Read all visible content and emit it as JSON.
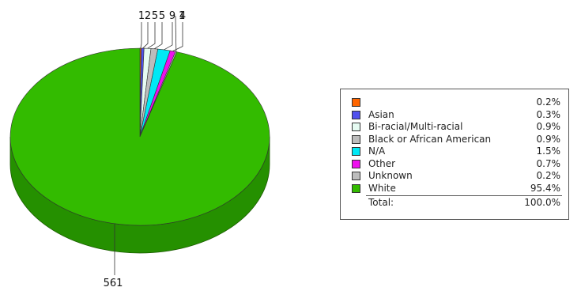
{
  "chart_data": {
    "type": "pie",
    "title": "",
    "three_d": true,
    "slices": [
      {
        "name": "",
        "label": "1",
        "value": 1,
        "percent": "0.2%",
        "color": "#ff6600",
        "side_color": "#cc5200"
      },
      {
        "name": "Asian",
        "label": "2",
        "value": 2,
        "percent": "0.3%",
        "color": "#5050ee",
        "side_color": "#3535b0"
      },
      {
        "name": "Bi-racial/Multi-racial",
        "label": "5",
        "value": 5,
        "percent": "0.9%",
        "color": "#e6fbf2",
        "side_color": "#b8c9c2"
      },
      {
        "name": "Black or African American",
        "label": "5",
        "value": 5,
        "percent": "0.9%",
        "color": "#bcbcbc",
        "side_color": "#909090"
      },
      {
        "name": "N/A",
        "label": "9",
        "value": 9,
        "percent": "1.5%",
        "color": "#00e8f5",
        "side_color": "#00aab4"
      },
      {
        "name": "Other",
        "label": "4",
        "value": 4,
        "percent": "0.7%",
        "color": "#ee10ee",
        "side_color": "#b00cb0"
      },
      {
        "name": "Unknown",
        "label": "1",
        "value": 1,
        "percent": "0.2%",
        "color": "#bdbdbd",
        "side_color": "#8f8f8f"
      },
      {
        "name": "White",
        "label": "561",
        "value": 561,
        "percent": "95.4%",
        "color": "#33bb00",
        "side_color": "#259000"
      }
    ],
    "total_label": "Total:",
    "total_percent": "100.0%",
    "legend_position": "right"
  }
}
